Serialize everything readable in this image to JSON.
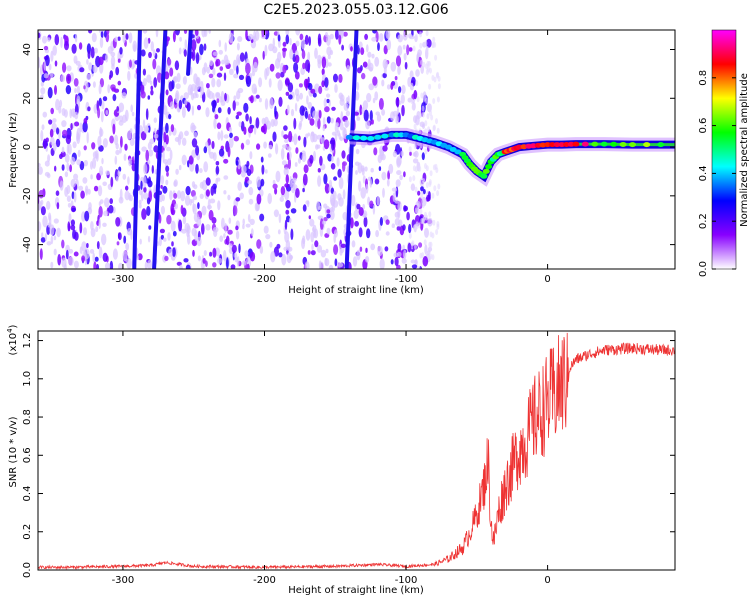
{
  "title": "C2E5.2023.055.03.12.G06",
  "chart_data": [
    {
      "type": "heatmap",
      "title": "C2E5.2023.055.03.12.G06",
      "xlabel": "Height of straight line (km)",
      "ylabel": "Frequency (Hz)",
      "xlim": [
        -360,
        90
      ],
      "ylim": [
        -50,
        48
      ],
      "x_ticks": [
        -300,
        -200,
        -100,
        0
      ],
      "x_tick_labels": [
        "-300",
        "-200",
        "-100",
        "0"
      ],
      "y_ticks": [
        -40,
        -20,
        0,
        20,
        40
      ],
      "y_tick_labels": [
        "-40",
        "-20",
        "0",
        "20",
        "40"
      ],
      "noise_region_x": [
        -360,
        -83
      ],
      "streaks": [
        {
          "x": [
            -292,
            -288
          ],
          "y": [
            -50,
            48
          ]
        },
        {
          "x": [
            -278,
            -270
          ],
          "y": [
            -50,
            48
          ]
        },
        {
          "x": [
            -254,
            -252
          ],
          "y": [
            30,
            48
          ]
        },
        {
          "x": [
            -142,
            -135
          ],
          "y": [
            -50,
            48
          ]
        }
      ],
      "signal_track": {
        "x": [
          -140,
          -125,
          -110,
          -100,
          -90,
          -80,
          -70,
          -60,
          -55,
          -50,
          -45,
          -40,
          -35,
          -30,
          -25,
          -20,
          -10,
          0,
          10,
          20,
          40,
          60,
          90
        ],
        "y": [
          4,
          3.5,
          5,
          5,
          3.5,
          2,
          0,
          -3,
          -7,
          -10,
          -12,
          -6,
          -3,
          -2,
          -1,
          0,
          0.5,
          1,
          1,
          1.2,
          1.2,
          1,
          1
        ]
      },
      "colorbar": {
        "label": "Normalized spectral amplitude",
        "range": [
          0,
          1
        ],
        "ticks": [
          0.0,
          0.2,
          0.4,
          0.6,
          0.8
        ],
        "tick_labels": [
          "0.0",
          "0.2",
          "0.4",
          "0.6",
          "0.8"
        ],
        "colors": [
          "#ffffff",
          "#8800ff",
          "#0000ff",
          "#00ffff",
          "#00ff00",
          "#ffff00",
          "#ff0000",
          "#ff00ff"
        ]
      }
    },
    {
      "type": "line",
      "xlabel": "Height of straight line (km)",
      "ylabel": "SNR (10 * v/v)",
      "y_multiplier": "(x10",
      "y_multiplier_exp": "4",
      "y_multiplier_close": ")",
      "xlim": [
        -360,
        90
      ],
      "ylim": [
        0,
        1.25
      ],
      "x_ticks": [
        -300,
        -200,
        -100,
        0
      ],
      "x_tick_labels": [
        "-300",
        "-200",
        "-100",
        "0"
      ],
      "y_ticks": [
        0.0,
        0.2,
        0.4,
        0.6,
        0.8,
        1.0,
        1.2
      ],
      "y_tick_labels": [
        "0.0",
        "0.2",
        "0.4",
        "0.6",
        "0.8",
        "1.0",
        "1.2"
      ],
      "color": "#ee3333",
      "x": [
        -360,
        -340,
        -300,
        -280,
        -270,
        -250,
        -200,
        -150,
        -120,
        -100,
        -80,
        -70,
        -60,
        -55,
        -50,
        -45,
        -42,
        -40,
        -38,
        -35,
        -30,
        -25,
        -20,
        -15,
        -10,
        -5,
        0,
        5,
        10,
        15,
        20,
        30,
        40,
        60,
        80,
        90
      ],
      "y": [
        0.015,
        0.015,
        0.02,
        0.025,
        0.04,
        0.02,
        0.015,
        0.02,
        0.03,
        0.02,
        0.03,
        0.06,
        0.12,
        0.2,
        0.3,
        0.45,
        0.6,
        0.25,
        0.15,
        0.3,
        0.45,
        0.55,
        0.65,
        0.7,
        0.8,
        0.85,
        0.9,
        0.95,
        1.0,
        1.05,
        1.1,
        1.13,
        1.15,
        1.16,
        1.15,
        1.15
      ]
    }
  ]
}
